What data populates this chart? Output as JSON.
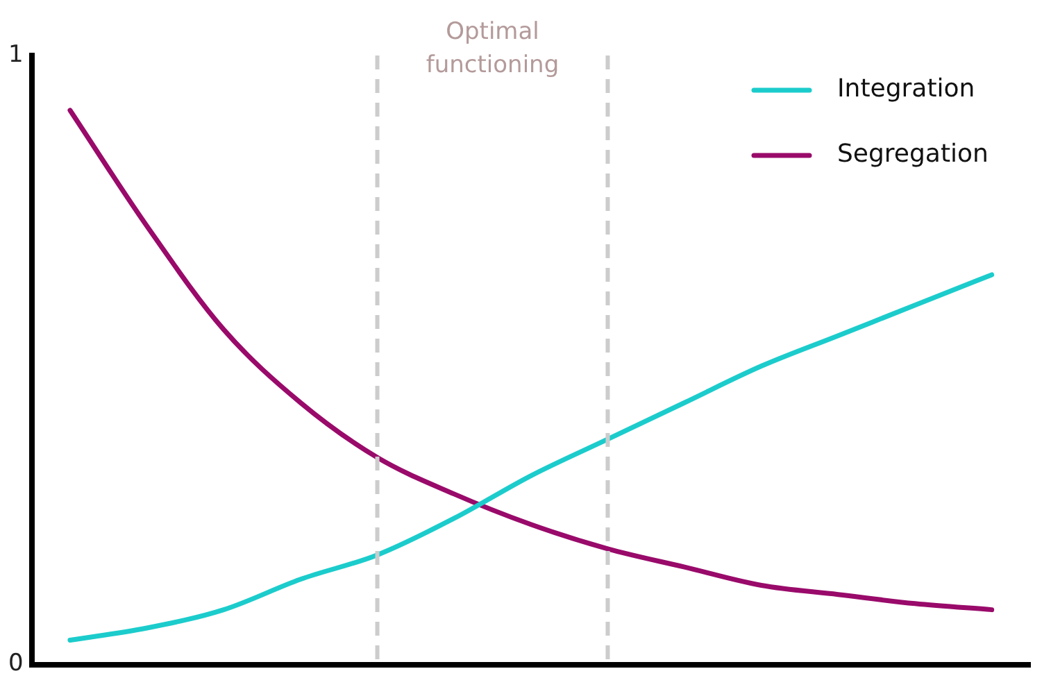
{
  "chart_data": {
    "type": "line",
    "annotations": [
      "Optimal functioning"
    ],
    "categories": [
      null,
      null,
      null,
      null,
      null,
      null,
      null,
      null,
      null,
      null,
      null,
      null,
      null
    ],
    "series": [
      {
        "name": "Integration",
        "color": "#1ccccc",
        "values": [
          0.04,
          0.06,
          0.09,
          0.14,
          0.18,
          0.24,
          0.31,
          0.37,
          0.43,
          0.49,
          0.54,
          0.59,
          0.64
        ]
      },
      {
        "name": "Segregation",
        "color": "#990a6a",
        "values": [
          0.91,
          0.72,
          0.55,
          0.43,
          0.34,
          0.28,
          0.23,
          0.19,
          0.16,
          0.13,
          0.115,
          0.1,
          0.09
        ]
      }
    ],
    "ylim": [
      0,
      1
    ],
    "yticks": [
      0,
      1
    ],
    "tick_labels": "y",
    "grid": false,
    "legend": "top right",
    "marker": "none",
    "line_style": "solid"
  }
}
